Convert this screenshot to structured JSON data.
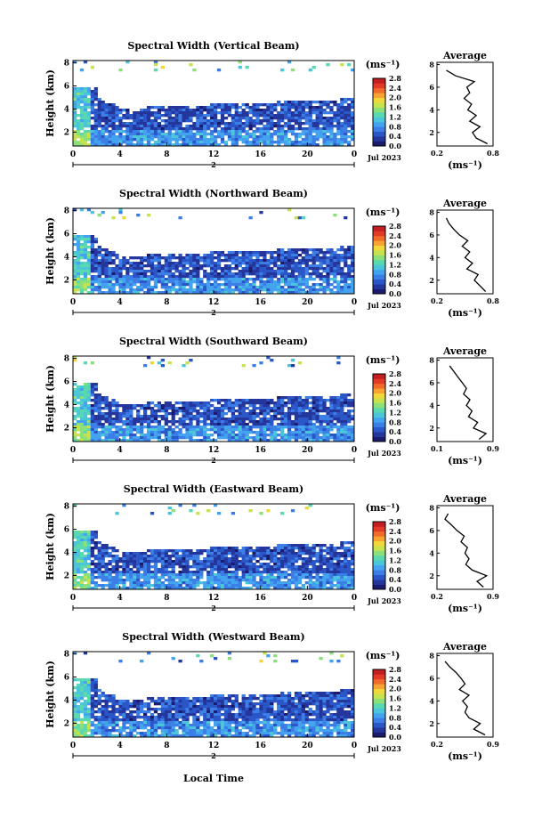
{
  "figure": {
    "x_axis_label": "Local Time",
    "date_label": "Jul 2023",
    "day_label": "2",
    "y_axis_label": "Height (km)",
    "x_ticks": [
      "0",
      "4",
      "8",
      "12",
      "16",
      "20",
      "0"
    ],
    "y_ticks": [
      "2",
      "4",
      "6",
      "8"
    ],
    "unit_label": "(ms⁻¹)",
    "average_title": "Average",
    "average_unit": "(ms⁻¹)",
    "colorbar_ticks": [
      "0.0",
      "0.4",
      "0.8",
      "1.2",
      "1.6",
      "2.0",
      "2.4",
      "2.8"
    ],
    "colormap": [
      "#1a1a6e",
      "#24369c",
      "#2a56c8",
      "#3b7ee6",
      "#43a3ef",
      "#4ac6d8",
      "#5ad8b0",
      "#8ce07a",
      "#c6e24e",
      "#f0d83a",
      "#f7a231",
      "#f06a2a",
      "#e23a26",
      "#c41e22"
    ]
  },
  "chart_data": [
    {
      "type": "heatmap",
      "title": "Spectral Width (Vertical Beam)",
      "xlabel": "Local Time",
      "ylabel": "Height (km)",
      "xlim": [
        0,
        24
      ],
      "ylim": [
        0.8,
        8.2
      ],
      "colorbar": {
        "label": "(ms⁻¹)",
        "range": [
          0.0,
          2.8
        ]
      },
      "profile": {
        "title": "Average",
        "xlabel": "(ms⁻¹)",
        "xlim": [
          0.2,
          0.8
        ],
        "x_tick_labels": [
          "0.2",
          "0.8"
        ],
        "heights": [
          1.0,
          1.5,
          2.0,
          2.5,
          3.0,
          3.5,
          4.0,
          4.5,
          5.0,
          5.5,
          6.0,
          6.5,
          7.0,
          7.5
        ],
        "values": [
          0.74,
          0.62,
          0.58,
          0.66,
          0.55,
          0.62,
          0.53,
          0.57,
          0.49,
          0.55,
          0.52,
          0.6,
          0.4,
          0.3
        ]
      }
    },
    {
      "type": "heatmap",
      "title": "Spectral Width (Northward Beam)",
      "xlabel": "Local Time",
      "ylabel": "Height (km)",
      "xlim": [
        0,
        24
      ],
      "ylim": [
        0.8,
        8.2
      ],
      "colorbar": {
        "label": "(ms⁻¹)",
        "range": [
          0.0,
          2.8
        ]
      },
      "profile": {
        "title": "Average",
        "xlabel": "(ms⁻¹)",
        "xlim": [
          0.2,
          0.8
        ],
        "x_tick_labels": [
          "0.2",
          "0.8"
        ],
        "heights": [
          1.0,
          1.5,
          2.0,
          2.5,
          3.0,
          3.5,
          4.0,
          4.5,
          5.0,
          5.5,
          6.0,
          6.5,
          7.0,
          7.5
        ],
        "values": [
          0.72,
          0.66,
          0.6,
          0.64,
          0.52,
          0.58,
          0.5,
          0.55,
          0.47,
          0.53,
          0.44,
          0.38,
          0.33,
          0.3
        ]
      }
    },
    {
      "type": "heatmap",
      "title": "Spectral Width (Southward Beam)",
      "xlabel": "Local Time",
      "ylabel": "Height (km)",
      "xlim": [
        0,
        24
      ],
      "ylim": [
        0.8,
        8.2
      ],
      "colorbar": {
        "label": "(ms⁻¹)",
        "range": [
          0.0,
          2.8
        ]
      },
      "profile": {
        "title": "Average",
        "xlabel": "(ms⁻¹)",
        "xlim": [
          0.1,
          0.9
        ],
        "x_tick_labels": [
          "0.1",
          "0.9"
        ],
        "heights": [
          1.0,
          1.5,
          2.0,
          2.5,
          3.0,
          3.5,
          4.0,
          4.5,
          5.0,
          5.5,
          6.0,
          6.5,
          7.0,
          7.5
        ],
        "values": [
          0.7,
          0.8,
          0.62,
          0.68,
          0.55,
          0.6,
          0.52,
          0.57,
          0.48,
          0.52,
          0.46,
          0.4,
          0.34,
          0.28
        ]
      }
    },
    {
      "type": "heatmap",
      "title": "Spectral Width (Eastward Beam)",
      "xlabel": "Local Time",
      "ylabel": "Height (km)",
      "xlim": [
        0,
        24
      ],
      "ylim": [
        0.8,
        8.2
      ],
      "colorbar": {
        "label": "(ms⁻¹)",
        "range": [
          0.0,
          2.8
        ]
      },
      "profile": {
        "title": "Average",
        "xlabel": "(ms⁻¹)",
        "xlim": [
          0.2,
          0.9
        ],
        "x_tick_labels": [
          "0.2",
          "0.9"
        ],
        "heights": [
          1.0,
          1.5,
          2.0,
          2.5,
          3.0,
          3.5,
          4.0,
          4.5,
          5.0,
          5.5,
          6.0,
          6.5,
          7.0,
          7.5
        ],
        "values": [
          0.78,
          0.7,
          0.82,
          0.64,
          0.56,
          0.6,
          0.55,
          0.58,
          0.5,
          0.54,
          0.45,
          0.38,
          0.3,
          0.34
        ]
      }
    },
    {
      "type": "heatmap",
      "title": "Spectral Width (Westward Beam)",
      "xlabel": "Local Time",
      "ylabel": "Height (km)",
      "xlim": [
        0,
        24
      ],
      "ylim": [
        0.8,
        8.2
      ],
      "colorbar": {
        "label": "(ms⁻¹)",
        "range": [
          0.0,
          2.8
        ]
      },
      "profile": {
        "title": "Average",
        "xlabel": "(ms⁻¹)",
        "xlim": [
          0.2,
          0.9
        ],
        "x_tick_labels": [
          "0.2",
          "0.9"
        ],
        "heights": [
          1.0,
          1.5,
          2.0,
          2.5,
          3.0,
          3.5,
          4.0,
          4.5,
          5.0,
          5.5,
          6.0,
          6.5,
          7.0,
          7.5
        ],
        "values": [
          0.8,
          0.66,
          0.74,
          0.6,
          0.55,
          0.58,
          0.52,
          0.6,
          0.48,
          0.55,
          0.5,
          0.44,
          0.36,
          0.3
        ]
      }
    }
  ]
}
